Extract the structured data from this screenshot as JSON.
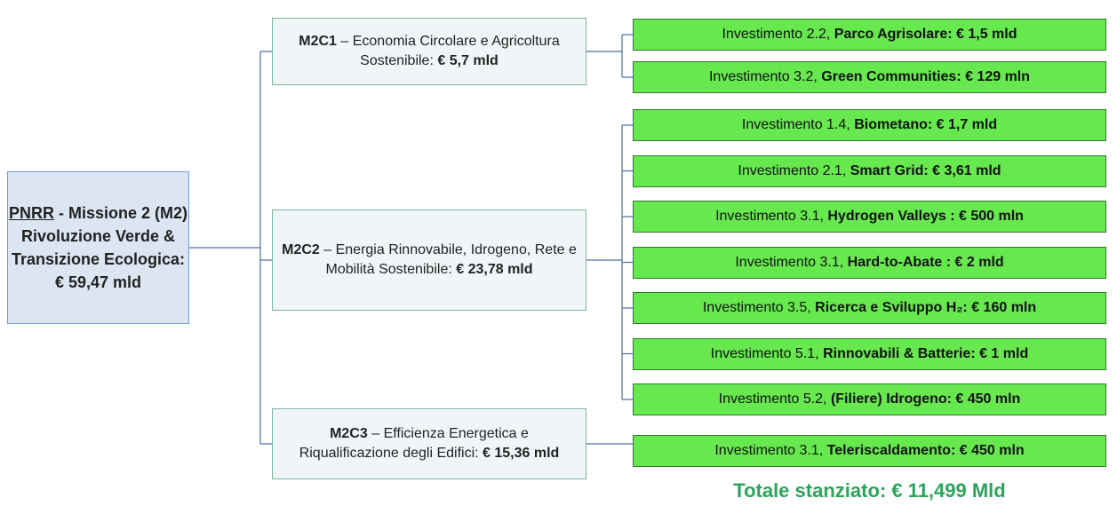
{
  "root": {
    "acronym": "PNRR",
    "title": "- Missione 2 (M2)",
    "subtitle": "Rivoluzione Verde & Transizione Ecologica:",
    "amount": "€ 59,47 mld"
  },
  "components": [
    {
      "code": "M2C1",
      "description": "– Economia Circolare e Agricoltura Sostenibile:",
      "amount": "€ 5,7 mld",
      "investments": [
        {
          "label": "Investimento 2.2,",
          "detail": "Parco Agrisolare: € 1,5 mld"
        },
        {
          "label": "Investimento 3.2,",
          "detail": "Green Communities: € 129 mln"
        }
      ]
    },
    {
      "code": "M2C2",
      "description": "– Energia Rinnovabile, Idrogeno, Rete e Mobilità Sostenibile:",
      "amount": "€ 23,78 mld",
      "investments": [
        {
          "label": "Investimento 1.4,",
          "detail": "Biometano: € 1,7 mld"
        },
        {
          "label": "Investimento 2.1,",
          "detail": "Smart Grid: € 3,61 mld"
        },
        {
          "label": "Investimento 3.1,",
          "detail": "Hydrogen Valleys : € 500 mln"
        },
        {
          "label": "Investimento 3.1,",
          "detail": "Hard-to-Abate : € 2 mld"
        },
        {
          "label": "Investimento 3.5,",
          "detail": "Ricerca e Sviluppo H₂: €  160 mln"
        },
        {
          "label": "Investimento 5.1,",
          "detail": "Rinnovabili & Batterie: € 1 mld"
        },
        {
          "label": "Investimento 5.2,",
          "detail": "(Filiere) Idrogeno:  € 450 mln"
        }
      ]
    },
    {
      "code": "M2C3",
      "description": "– Efficienza Energetica e Riqualificazione degli Edifici:",
      "amount": "€ 15,36 mld",
      "investments": [
        {
          "label": "Investimento 3.1,",
          "detail": "Teleriscaldamento: € 450 mln"
        }
      ]
    }
  ],
  "total": "Totale stanziato: € 11,499 Mld"
}
